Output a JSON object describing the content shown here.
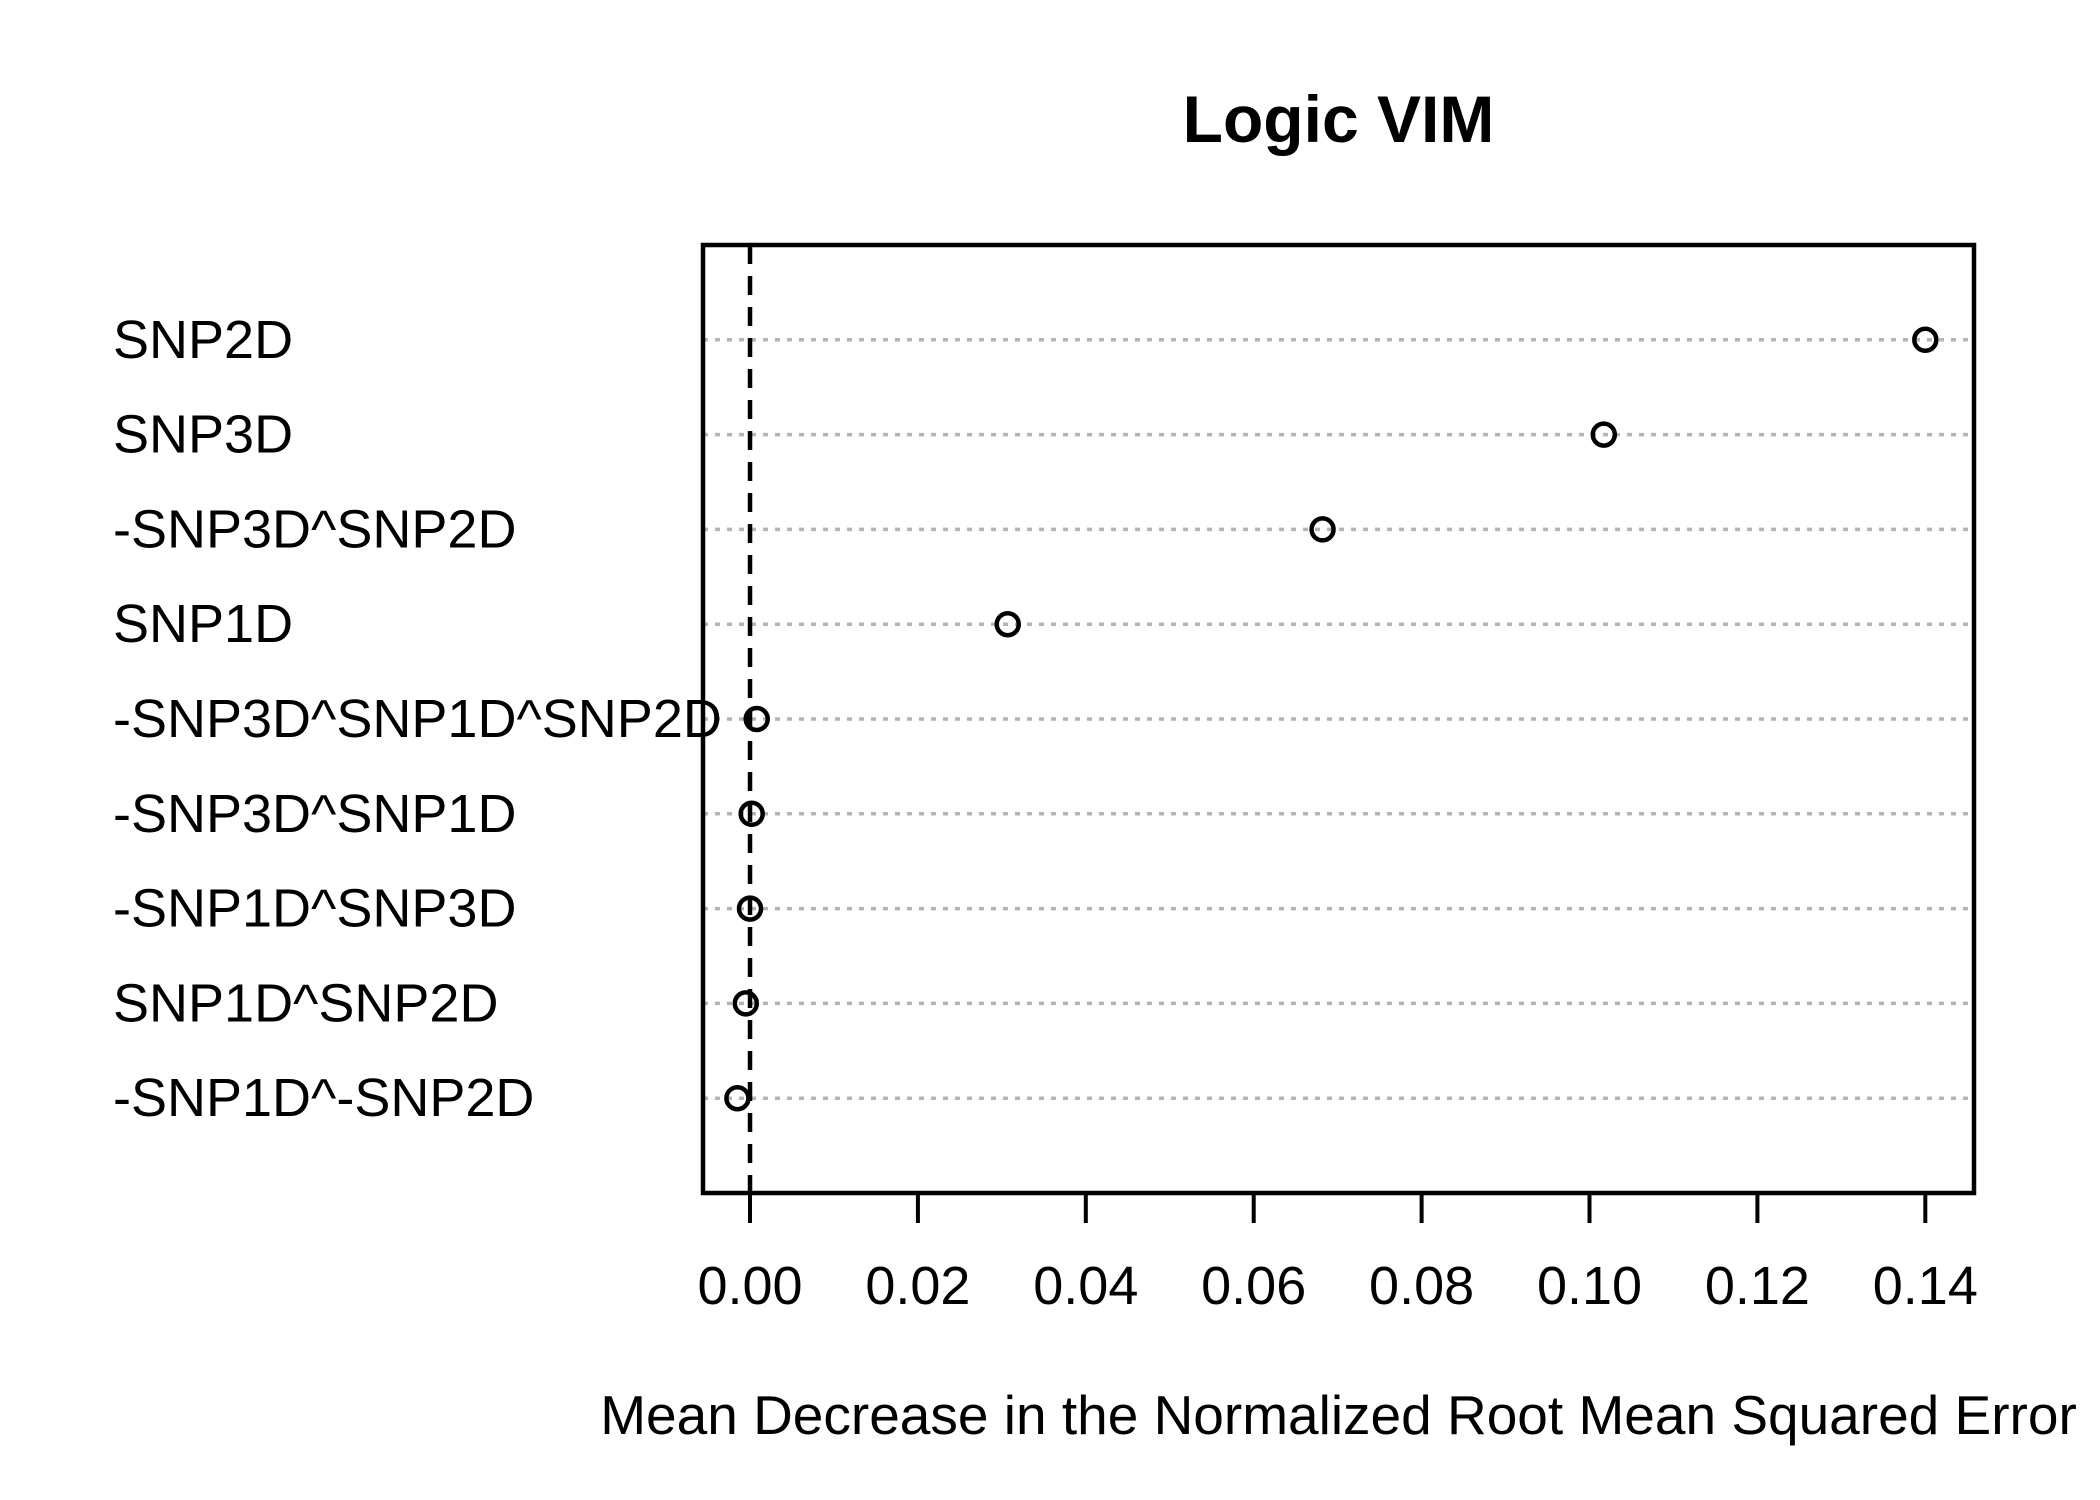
{
  "figure": {
    "background": "#ffffff",
    "foreground": "#000000"
  },
  "chart_data": {
    "type": "scatter",
    "subtype": "dotchart",
    "title": "Logic VIM",
    "xlabel": "Mean Decrease in the Normalized Root Mean Squared Error",
    "ylabel": "",
    "categories": [
      "SNP2D",
      "SNP3D",
      "-SNP3D^SNP2D",
      "SNP1D",
      "-SNP3D^SNP1D^SNP2D",
      "-SNP3D^SNP1D",
      "-SNP1D^SNP3D",
      "SNP1D^SNP2D",
      "-SNP1D^-SNP2D"
    ],
    "values": [
      0.14,
      0.1017,
      0.0682,
      0.0307,
      0.0008,
      0.0002,
      0.0,
      -0.0005,
      -0.0015
    ],
    "x_ticks": [
      0.0,
      0.02,
      0.04,
      0.06,
      0.08,
      0.1,
      0.12,
      0.14
    ],
    "x_tick_labels": [
      "0.00",
      "0.02",
      "0.04",
      "0.06",
      "0.08",
      "0.10",
      "0.12",
      "0.14"
    ],
    "xlim": [
      -0.0056,
      0.1458
    ],
    "reference_line_x": 0,
    "grid": "dotted horizontal line per category",
    "legend": "none",
    "marker": "open-circle",
    "colors": {
      "point_stroke": "#000000",
      "gridline": "#b4b4b4",
      "reference_line": "#000000",
      "box": "#000000",
      "text": "#000000"
    }
  }
}
